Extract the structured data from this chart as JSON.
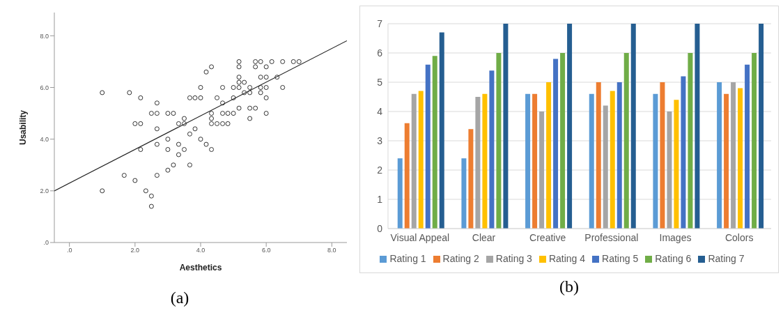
{
  "chart_data": [
    {
      "type": "scatter",
      "xlabel": "Aesthetics",
      "ylabel": "Usability",
      "xlim": [
        -0.46,
        8.46
      ],
      "ylim": [
        0,
        8.9
      ],
      "xticks": [
        {
          "value": 0,
          "label": ".0"
        },
        {
          "value": 2,
          "label": "2.0"
        },
        {
          "value": 4,
          "label": "4.0"
        },
        {
          "value": 6,
          "label": "6.0"
        },
        {
          "value": 8,
          "label": "8.0"
        }
      ],
      "yticks": [
        {
          "value": 0,
          "label": ".0"
        },
        {
          "value": 2,
          "label": "2.0"
        },
        {
          "value": 4,
          "label": "4.0"
        },
        {
          "value": 6,
          "label": "6.0"
        },
        {
          "value": 8,
          "label": "8.0"
        }
      ],
      "marker": "circle",
      "grid": false,
      "legend": false,
      "annotations": [
        "(a)"
      ],
      "series": [
        {
          "type": "scatter",
          "color": "#333333",
          "x": [
            1.0,
            1.83,
            2.17,
            2.67,
            2.5,
            2.67,
            3.0,
            3.17,
            3.5,
            2.0,
            2.17,
            3.33,
            3.5,
            2.67,
            3.67,
            3.0,
            2.67,
            3.33,
            2.17,
            3.0,
            3.5,
            3.33,
            3.17,
            3.67,
            3.0,
            1.67,
            2.67,
            2.0,
            1.0,
            2.33,
            2.5,
            2.5,
            3.67,
            3.83,
            5.17,
            5.67,
            5.83,
            6.17,
            6.5,
            6.83,
            7.0,
            4.33,
            5.17,
            5.67,
            6.0,
            4.17,
            5.17,
            5.83,
            6.0,
            6.33,
            5.17,
            5.33,
            4.0,
            4.67,
            5.0,
            5.17,
            5.5,
            5.83,
            6.0,
            6.5,
            5.33,
            5.5,
            5.83,
            3.83,
            4.0,
            4.5,
            5.0,
            6.0,
            4.67,
            5.17,
            5.5,
            5.67,
            4.33,
            4.67,
            4.83,
            5.0,
            6.0,
            4.33,
            5.5,
            4.33,
            4.5,
            4.67,
            4.83,
            4.0,
            4.17,
            4.33
          ],
          "values": [
            5.8,
            5.8,
            5.6,
            5.4,
            5.0,
            5.0,
            5.0,
            5.0,
            4.8,
            4.6,
            4.6,
            4.6,
            4.6,
            4.4,
            4.2,
            4.0,
            3.8,
            3.8,
            3.6,
            3.6,
            3.6,
            3.4,
            3.0,
            3.0,
            2.8,
            2.6,
            2.6,
            2.4,
            2.0,
            2.0,
            1.8,
            1.4,
            5.6,
            4.4,
            7.0,
            7.0,
            7.0,
            7.0,
            7.0,
            7.0,
            7.0,
            6.8,
            6.8,
            6.8,
            6.8,
            6.6,
            6.4,
            6.4,
            6.4,
            6.4,
            6.2,
            6.2,
            6.0,
            6.0,
            6.0,
            6.0,
            6.0,
            6.0,
            6.0,
            6.0,
            5.8,
            5.8,
            5.8,
            5.6,
            5.6,
            5.6,
            5.6,
            5.6,
            5.4,
            5.2,
            5.2,
            5.2,
            5.0,
            5.0,
            5.0,
            5.0,
            5.0,
            4.8,
            4.8,
            4.6,
            4.6,
            4.6,
            4.6,
            4.0,
            3.8,
            3.6
          ]
        },
        {
          "type": "line",
          "color": "#222222",
          "marker": "none",
          "x": [
            -0.46,
            8.46
          ],
          "values": [
            2.0,
            7.81
          ]
        }
      ]
    },
    {
      "type": "bar",
      "categories": [
        "Visual Appeal",
        "Clear",
        "Creative",
        "Professional",
        "Images",
        "Colors"
      ],
      "ylim": [
        0,
        7
      ],
      "yticks": [
        0,
        1,
        2,
        3,
        4,
        5,
        6,
        7
      ],
      "grid": "y",
      "legend": "bottom",
      "annotations": [
        "(b)"
      ],
      "series": [
        {
          "name": "Rating 1",
          "color": "#5b9bd5",
          "values": [
            2.4,
            2.4,
            4.6,
            4.6,
            4.6,
            5.0
          ]
        },
        {
          "name": "Rating 2",
          "color": "#ed7d31",
          "values": [
            3.6,
            3.4,
            4.6,
            5.0,
            5.0,
            4.6
          ]
        },
        {
          "name": "Rating 3",
          "color": "#a5a5a5",
          "values": [
            4.6,
            4.5,
            4.0,
            4.2,
            4.0,
            5.0
          ]
        },
        {
          "name": "Rating 4",
          "color": "#ffc000",
          "values": [
            4.7,
            4.6,
            5.0,
            4.7,
            4.4,
            4.8
          ]
        },
        {
          "name": "Rating 5",
          "color": "#4472c4",
          "values": [
            5.6,
            5.4,
            5.8,
            5.0,
            5.2,
            5.6
          ]
        },
        {
          "name": "Rating 6",
          "color": "#70ad47",
          "values": [
            5.9,
            6.0,
            6.0,
            6.0,
            6.0,
            6.0
          ]
        },
        {
          "name": "Rating 7",
          "color": "#255e91",
          "values": [
            6.7,
            7.0,
            7.0,
            7.0,
            7.0,
            7.0
          ]
        }
      ]
    }
  ]
}
